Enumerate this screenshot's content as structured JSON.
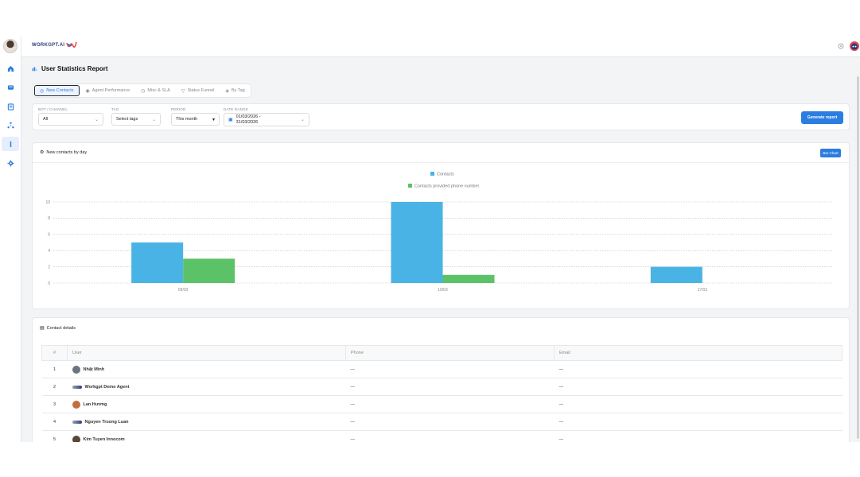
{
  "brand": {
    "logo_text": "WORKGPT.AI"
  },
  "sidebar": {
    "items": [
      {
        "name": "home",
        "icon": "home-icon"
      },
      {
        "name": "chat",
        "icon": "chat-icon"
      },
      {
        "name": "documents",
        "icon": "document-icon"
      },
      {
        "name": "network",
        "icon": "network-icon"
      },
      {
        "name": "reports",
        "icon": "bar-chart-icon",
        "active": true
      },
      {
        "name": "settings",
        "icon": "gear-icon"
      }
    ]
  },
  "page": {
    "title": "User Statistics Report"
  },
  "tabs": [
    {
      "label": "New Contacts",
      "active": true
    },
    {
      "label": "Agent Performance"
    },
    {
      "label": "Misc & SLA"
    },
    {
      "label": "Status Funnel"
    },
    {
      "label": "By Tag"
    }
  ],
  "filters": {
    "bot_channel": {
      "label": "BOT / CHANNEL",
      "value": "All"
    },
    "tag": {
      "label": "TAG",
      "value": "Select tags"
    },
    "period": {
      "label": "PERIOD",
      "value": "This month"
    },
    "date_range": {
      "label": "DATE RANGE",
      "value_line1": "01/03/2026 -",
      "value_line2": "31/03/2026"
    },
    "generate_label": "Generate report"
  },
  "chart_card": {
    "title": "New contacts by day",
    "toggle_label": "Bar Chart"
  },
  "chart_data": {
    "type": "bar",
    "categories": [
      "09/03",
      "10/03",
      "17/03"
    ],
    "series": [
      {
        "name": "Contacts",
        "color": "#4ab3e6",
        "values": [
          5,
          10,
          2
        ]
      },
      {
        "name": "Contacts provided phone number",
        "color": "#5cc267",
        "values": [
          3,
          1,
          0
        ]
      }
    ],
    "ylim": [
      0,
      10
    ],
    "yticks": [
      0,
      2,
      4,
      6,
      8,
      10
    ],
    "grid": true,
    "legend": "top-center"
  },
  "details": {
    "title": "Contact details",
    "columns": [
      "#",
      "User",
      "Phone",
      "Email"
    ],
    "rows": [
      {
        "num": "1",
        "user": "Nhật Minh",
        "phone": "—",
        "email": "—",
        "avatar": "#6b7280"
      },
      {
        "num": "2",
        "user": "Workgpt Demo Agent",
        "phone": "—",
        "email": "—",
        "avatar": "line"
      },
      {
        "num": "3",
        "user": "Lan Hương",
        "phone": "—",
        "email": "—",
        "avatar": "#c2703d"
      },
      {
        "num": "4",
        "user": "Nguyen Truong Luan",
        "phone": "—",
        "email": "—",
        "avatar": "line"
      },
      {
        "num": "5",
        "user": "Kim Tuyen Innocom",
        "phone": "—",
        "email": "—",
        "avatar": "#5b4636"
      }
    ]
  }
}
